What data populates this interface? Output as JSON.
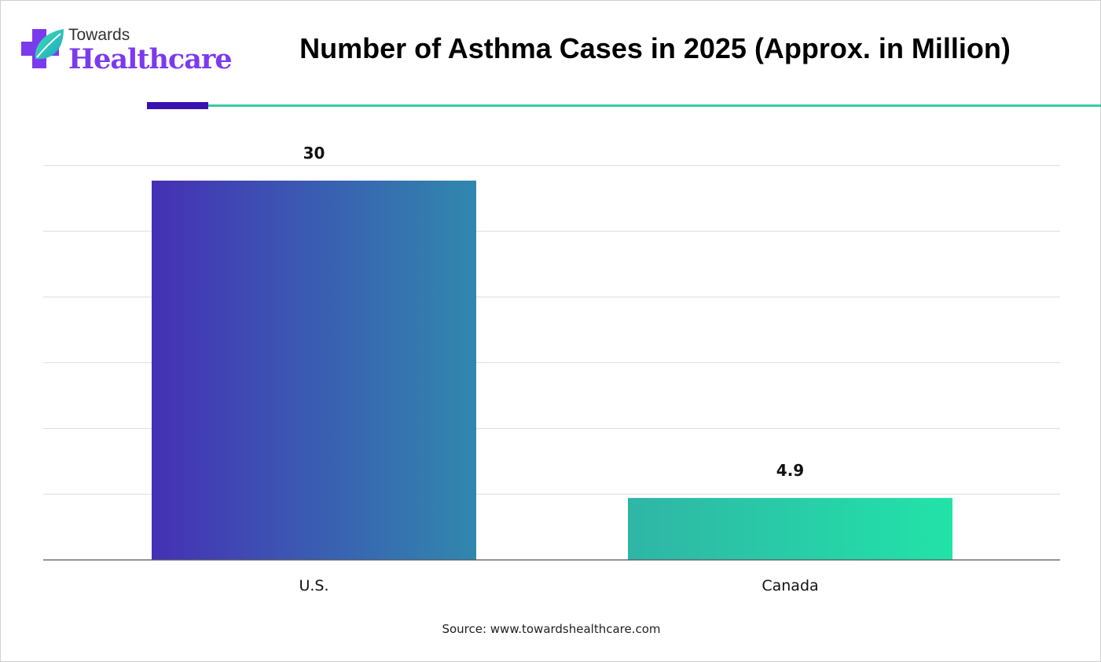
{
  "brand": {
    "name_top": "Towards",
    "name_bottom": "Healthcare",
    "logo_icon": "medical-cross-leaf-icon"
  },
  "colors": {
    "accent_dark": "#3a10b0",
    "accent_teal": "#3cc9a6",
    "bar_us_start": "#4530b5",
    "bar_us_end": "#3088ae",
    "bar_canada_start": "#2fb5a6",
    "bar_canada_end": "#22e3a8"
  },
  "chart_data": {
    "type": "bar",
    "title": "Number of Asthma Cases in 2025 (Approx. in Million)",
    "categories": [
      "U.S.",
      "Canada"
    ],
    "values": [
      30,
      4.9
    ],
    "data_labels": [
      "30",
      "4.9"
    ],
    "xlabel": "",
    "ylabel": "",
    "ylim": [
      0,
      30
    ],
    "grid": true,
    "legend": "none"
  },
  "source": "Source: www.towardshealthcare.com"
}
